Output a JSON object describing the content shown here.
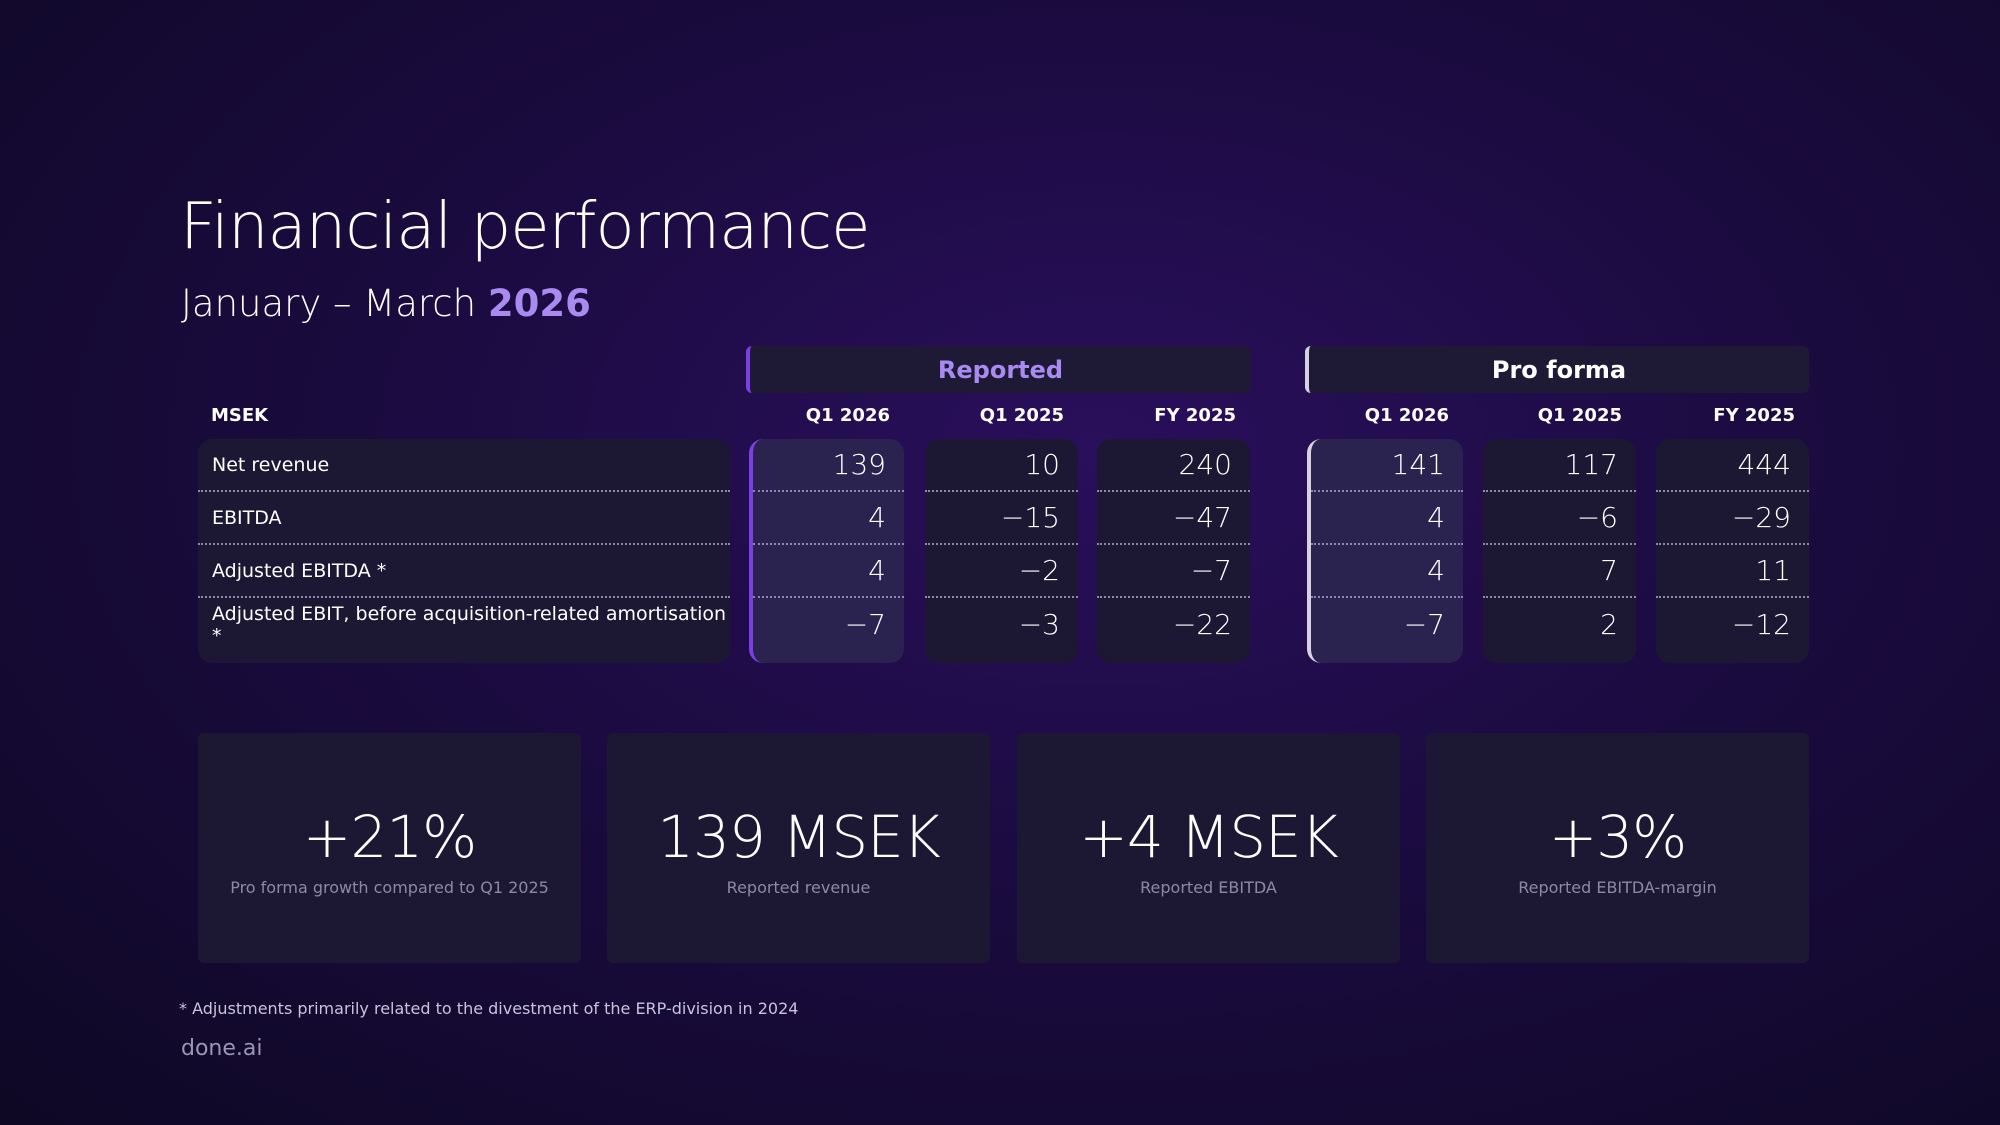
{
  "header": {
    "title": "Financial performance",
    "subtitle": "January – March",
    "subtitle_highlight": "2026"
  },
  "table": {
    "unit": "MSEK",
    "groups": [
      {
        "name": "Reported",
        "columns": [
          "Q1 2026",
          "Q1 2025",
          "FY 2025"
        ]
      },
      {
        "name": "Pro forma",
        "columns": [
          "Q1 2026",
          "Q1 2025",
          "FY 2025"
        ]
      }
    ],
    "rows": [
      {
        "label": "Net revenue",
        "values": [
          "139",
          "10",
          "240",
          "141",
          "117",
          "444"
        ]
      },
      {
        "label": "EBITDA",
        "values": [
          "4",
          "−15",
          "−47",
          "4",
          "−6",
          "−29"
        ]
      },
      {
        "label": "Adjusted EBITDA *",
        "values": [
          "4",
          "−2",
          "−7",
          "4",
          "7",
          "11"
        ]
      },
      {
        "label": "Adjusted EBIT, before acquisition-related amortisation *",
        "values": [
          "−7",
          "−3",
          "−22",
          "−7",
          "2",
          "−12"
        ]
      }
    ]
  },
  "kpis": [
    {
      "value": "+21%",
      "label": "Pro forma growth compared to Q1 2025"
    },
    {
      "value": "139 MSEK",
      "label": "Reported revenue"
    },
    {
      "value": "+4 MSEK",
      "label": "Reported EBITDA"
    },
    {
      "value": "+3%",
      "label": "Reported EBITDA-margin"
    }
  ],
  "footnote": "* Adjustments primarily related to the divestment of the ERP-division in 2024",
  "brand": "done.ai"
}
